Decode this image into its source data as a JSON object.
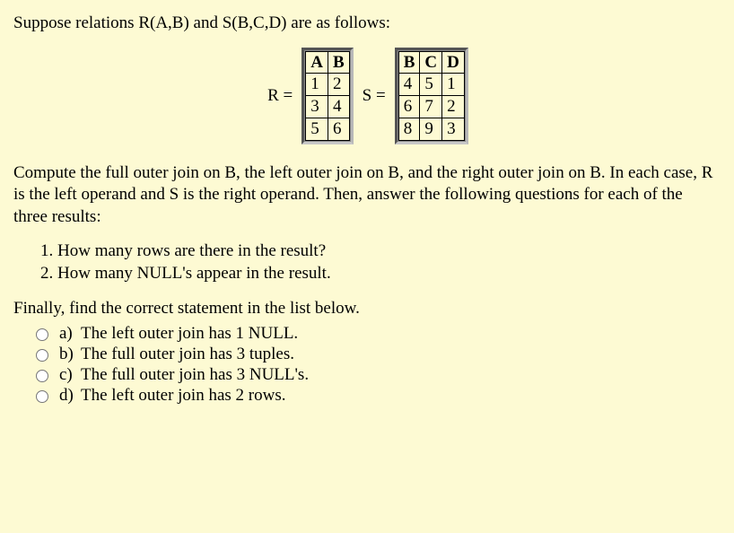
{
  "intro": "Suppose relations R(A,B) and S(B,C,D) are as follows:",
  "tables": {
    "r_label": "R =",
    "s_label": "S =",
    "r_headers": [
      "A",
      "B"
    ],
    "r_rows": [
      [
        "1",
        "2"
      ],
      [
        "3",
        "4"
      ],
      [
        "5",
        "6"
      ]
    ],
    "s_headers": [
      "B",
      "C",
      "D"
    ],
    "s_rows": [
      [
        "4",
        "5",
        "1"
      ],
      [
        "6",
        "7",
        "2"
      ],
      [
        "8",
        "9",
        "3"
      ]
    ]
  },
  "para2": "Compute the full outer join on B, the left outer join on B, and the right outer join on B. In each case, R is the left operand and S is the right operand. Then, answer the following questions for each of the three results:",
  "questions": {
    "q1": "1. How many rows are there in the result?",
    "q2": "2. How many NULL's appear in the result."
  },
  "finally": "Finally, find the correct statement in the list below.",
  "options": {
    "a": {
      "letter": "a)",
      "text": "The left outer join has 1 NULL."
    },
    "b": {
      "letter": "b)",
      "text": "The full outer join has 3 tuples."
    },
    "c": {
      "letter": "c)",
      "text": "The full outer join has 3 NULL's."
    },
    "d": {
      "letter": "d)",
      "text": "The left outer join has 2 rows."
    }
  },
  "style": {
    "background": "#fdfad3",
    "font_family": "Times New Roman",
    "body_fontsize": 19,
    "table_border_color": "#000000",
    "table_frame_color": "#7a7a7a"
  }
}
